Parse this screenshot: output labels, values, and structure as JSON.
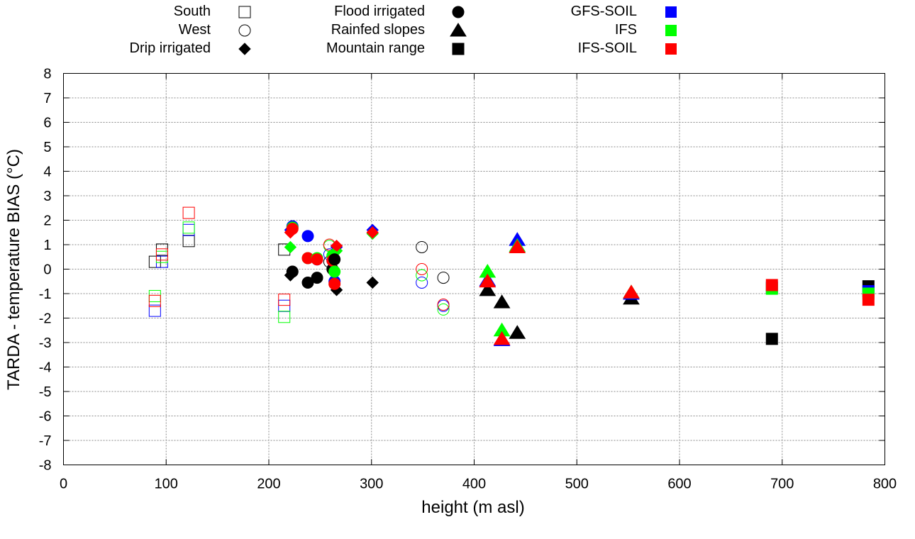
{
  "chart_data": {
    "type": "scatter",
    "title": "",
    "xlabel": "height (m asl)",
    "ylabel": "TARDA - temperature BIAS (°C)",
    "xlim": [
      0,
      800
    ],
    "ylim": [
      -8,
      8
    ],
    "xticks": [
      0,
      100,
      200,
      300,
      400,
      500,
      600,
      700,
      800
    ],
    "yticks": [
      -8,
      -7,
      -6,
      -5,
      -4,
      -3,
      -2,
      -1,
      0,
      1,
      2,
      3,
      4,
      5,
      6,
      7,
      8
    ],
    "grid": true,
    "legend": {
      "placement": "top",
      "zones": [
        {
          "label": "South",
          "shape": "square",
          "fill": "open",
          "color": "#000000"
        },
        {
          "label": "West",
          "shape": "circle",
          "fill": "open",
          "color": "#000000"
        },
        {
          "label": "Drip irrigated",
          "shape": "diamond",
          "fill": "solid",
          "color": "#000000"
        },
        {
          "label": "Flood irrigated",
          "shape": "circle",
          "fill": "solid",
          "color": "#000000"
        },
        {
          "label": "Rainfed slopes",
          "shape": "triangle",
          "fill": "solid",
          "color": "#000000"
        },
        {
          "label": "Mountain range",
          "shape": "square",
          "fill": "solid",
          "color": "#000000"
        }
      ],
      "models": [
        {
          "label": "GFS-SOIL",
          "color": "#0000ff"
        },
        {
          "label": "IFS",
          "color": "#00ff00"
        },
        {
          "label": "IFS-SOIL",
          "color": "#ff0000"
        }
      ]
    },
    "series": [
      {
        "name": "South",
        "shape": "square",
        "fill": "open",
        "points": [
          {
            "x": 89,
            "TARDA": 0.3,
            "GFS-SOIL": -1.7,
            "IFS": -1.1,
            "IFS-SOIL": -1.3
          },
          {
            "x": 96,
            "TARDA": 0.8,
            "GFS-SOIL": 0.3,
            "IFS": 0.5,
            "IFS-SOIL": 0.6
          },
          {
            "x": 122,
            "TARDA": 1.15,
            "GFS-SOIL": 1.6,
            "IFS": 1.7,
            "IFS-SOIL": 2.3
          },
          {
            "x": 215,
            "TARDA": 0.8,
            "GFS-SOIL": -1.5,
            "IFS": -1.95,
            "IFS-SOIL": -1.25
          }
        ]
      },
      {
        "name": "West",
        "shape": "circle",
        "fill": "open",
        "points": [
          {
            "x": 259,
            "TARDA": 0.3,
            "GFS-SOIL": 0.6,
            "IFS": 0.95,
            "IFS-SOIL": 1.0
          },
          {
            "x": 349,
            "TARDA": 0.9,
            "GFS-SOIL": -0.55,
            "IFS": -0.25,
            "IFS-SOIL": 0.0
          },
          {
            "x": 370,
            "TARDA": -0.35,
            "GFS-SOIL": -1.5,
            "IFS": -1.65,
            "IFS-SOIL": -1.45
          }
        ]
      },
      {
        "name": "Drip irrigated",
        "shape": "diamond",
        "fill": "solid",
        "points": [
          {
            "x": 221,
            "TARDA": -0.25,
            "GFS-SOIL": 1.6,
            "IFS": 0.9,
            "IFS-SOIL": 1.5
          },
          {
            "x": 266,
            "TARDA": -0.85,
            "GFS-SOIL": 0.9,
            "IFS": 0.75,
            "IFS-SOIL": 0.95
          },
          {
            "x": 301,
            "TARDA": -0.55,
            "GFS-SOIL": 1.6,
            "IFS": 1.45,
            "IFS-SOIL": 1.5
          }
        ]
      },
      {
        "name": "Flood irrigated",
        "shape": "circle",
        "fill": "solid",
        "points": [
          {
            "x": 223,
            "TARDA": -0.1,
            "GFS-SOIL": 1.75,
            "IFS": 1.7,
            "IFS-SOIL": 1.65
          },
          {
            "x": 238,
            "TARDA": -0.55,
            "GFS-SOIL": 1.35,
            "IFS": 0.45,
            "IFS-SOIL": 0.45
          },
          {
            "x": 247,
            "TARDA": -0.35,
            "GFS-SOIL": 0.4,
            "IFS": 0.45,
            "IFS-SOIL": 0.4
          },
          {
            "x": 262,
            "TARDA": 0.0,
            "GFS-SOIL": 0.35,
            "IFS": 0.55,
            "IFS-SOIL": 0.35
          },
          {
            "x": 264,
            "TARDA": 0.4,
            "GFS-SOIL": -0.5,
            "IFS": -0.1,
            "IFS-SOIL": -0.6
          }
        ]
      },
      {
        "name": "Rainfed slopes",
        "shape": "triangle",
        "fill": "solid",
        "points": [
          {
            "x": 413,
            "TARDA": -0.85,
            "GFS-SOIL": -0.45,
            "IFS": -0.1,
            "IFS-SOIL": -0.5
          },
          {
            "x": 427,
            "TARDA": -1.35,
            "GFS-SOIL": -2.9,
            "IFS": -2.5,
            "IFS-SOIL": -2.85
          },
          {
            "x": 442,
            "TARDA": -2.6,
            "GFS-SOIL": 1.2,
            "IFS": 0.95,
            "IFS-SOIL": 0.9
          },
          {
            "x": 553,
            "TARDA": -1.2,
            "GFS-SOIL": -1.0,
            "IFS": -0.95,
            "IFS-SOIL": -0.95
          }
        ]
      },
      {
        "name": "Mountain range",
        "shape": "square",
        "fill": "solid",
        "points": [
          {
            "x": 690,
            "TARDA": -2.85,
            "GFS-SOIL": -0.75,
            "IFS": -0.8,
            "IFS-SOIL": -0.65
          },
          {
            "x": 784,
            "TARDA": -0.7,
            "GFS-SOIL": -0.9,
            "IFS": -1.0,
            "IFS-SOIL": -1.25
          }
        ]
      }
    ]
  }
}
